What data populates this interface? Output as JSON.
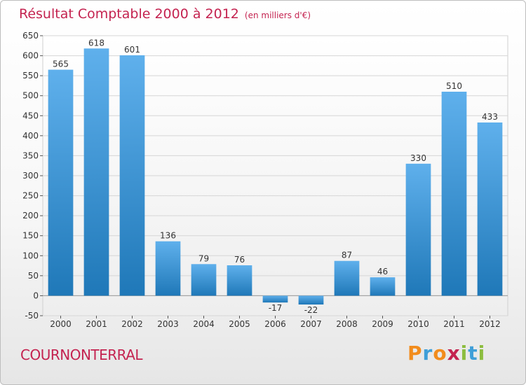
{
  "header": {
    "title": "Résultat Comptable 2000 à 2012",
    "subtitle": "(en milliers d'€)"
  },
  "commune": "COURNONTERRAL",
  "logo": {
    "text": "Proxiti",
    "letters": [
      {
        "ch": "P",
        "color": "#f28c1c"
      },
      {
        "ch": "r",
        "color": "#3f9fd8"
      },
      {
        "ch": "o",
        "color": "#f28c1c"
      },
      {
        "ch": "x",
        "color": "#c42350"
      },
      {
        "ch": "i",
        "color": "#8cbd3f"
      },
      {
        "ch": "t",
        "color": "#3f9fd8"
      },
      {
        "ch": "i",
        "color": "#8cbd3f"
      }
    ]
  },
  "chart_data": {
    "type": "bar",
    "title": "Résultat Comptable 2000 à 2012",
    "subtitle": "(en milliers d'€)",
    "categories": [
      "2000",
      "2001",
      "2002",
      "2003",
      "2004",
      "2005",
      "2006",
      "2007",
      "2008",
      "2009",
      "2010",
      "2011",
      "2012"
    ],
    "values": [
      565,
      618,
      601,
      136,
      79,
      76,
      -17,
      -22,
      87,
      46,
      330,
      510,
      433
    ],
    "value_labels": [
      "565",
      "618",
      "601",
      "136",
      "79",
      "76",
      "-17",
      "-22",
      "87",
      "46",
      "330",
      "510",
      "433"
    ],
    "ylim": [
      -50,
      650
    ],
    "yticks": [
      -50,
      0,
      50,
      100,
      150,
      200,
      250,
      300,
      350,
      400,
      450,
      500,
      550,
      600,
      650
    ],
    "grid": true,
    "bar_color_top": "#5fb0ec",
    "bar_color_bottom": "#1f78b8"
  }
}
